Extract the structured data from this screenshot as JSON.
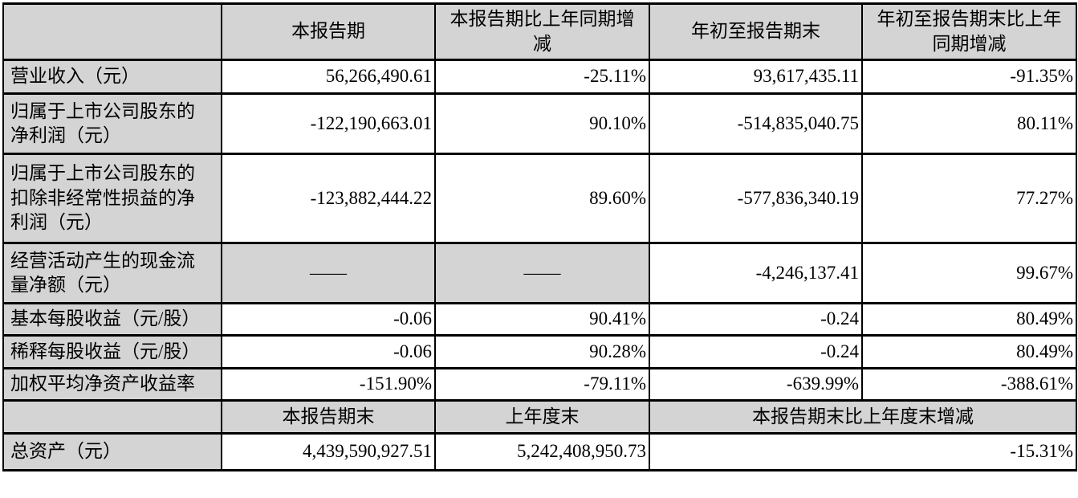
{
  "table": {
    "header_row1": {
      "corner": "",
      "current_period": "本报告期",
      "current_period_yoy": "本报告期比上年同期增\n减",
      "ytd": "年初至报告期末",
      "ytd_yoy": "年初至报告期末比上年\n同期增减"
    },
    "rows": [
      {
        "label": "营业收入（元）",
        "cells": [
          "56,266,490.61",
          "-25.11%",
          "93,617,435.11",
          "-91.35%"
        ]
      },
      {
        "label": "归属于上市公司股东的\n净利润（元）",
        "cells": [
          "-122,190,663.01",
          "90.10%",
          "-514,835,040.75",
          "80.11%"
        ]
      },
      {
        "label": "归属于上市公司股东的\n扣除非经常性损益的净\n利润（元）",
        "cells": [
          "-123,882,444.22",
          "89.60%",
          "-577,836,340.19",
          "77.27%"
        ]
      },
      {
        "label": "经营活动产生的现金流\n量净额（元）",
        "cells": [
          "——",
          "——",
          "-4,246,137.41",
          "99.67%"
        ]
      },
      {
        "label": "基本每股收益（元/股）",
        "cells": [
          "-0.06",
          "90.41%",
          "-0.24",
          "80.49%"
        ]
      },
      {
        "label": "稀释每股收益（元/股）",
        "cells": [
          "-0.06",
          "90.28%",
          "-0.24",
          "80.49%"
        ]
      },
      {
        "label": "加权平均净资产收益率",
        "cells": [
          "-151.90%",
          "-79.11%",
          "-639.99%",
          "-388.61%"
        ]
      }
    ],
    "header_row2": {
      "corner": "",
      "current_period_end": "本报告期末",
      "prior_year_end": "上年度末",
      "period_end_vs_prior_year_end": "本报告期末比上年度末增减"
    },
    "total_assets_row": {
      "label": "总资产（元）",
      "cells": [
        "4,439,590,927.51",
        "5,242,408,950.73",
        "-15.31%"
      ]
    },
    "colors": {
      "header_fill": "#d4d4d4",
      "border": "#000000",
      "text": "#000000"
    }
  }
}
